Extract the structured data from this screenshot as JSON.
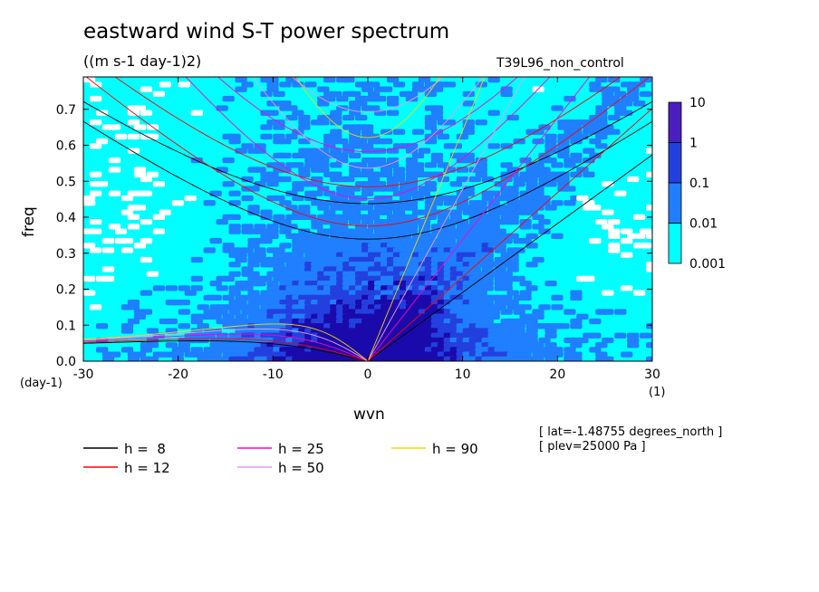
{
  "header": {
    "title": "eastward wind S-T power spectrum",
    "units": "((m s-1 day-1)2)",
    "run": "T39L96_non_control"
  },
  "axes": {
    "xlabel": "wvn",
    "ylabel": "freq",
    "x_unit": "(1)",
    "y_unit": "(day-1)"
  },
  "meta": {
    "lat": "[ lat=-1.48755 degrees_north ]",
    "plev": "[ plev=25000 Pa ]"
  },
  "colors": {
    "c1": "#00ffff",
    "c2": "#1f7fff",
    "c3": "#2340df",
    "c4": "#1b0aab",
    "c5": "#4a1fbf"
  },
  "chart_data": {
    "type": "heatmap",
    "title": "eastward wind S-T power spectrum",
    "xlabel": "wvn",
    "ylabel": "freq",
    "xlim": [
      -30,
      30
    ],
    "ylim": [
      0,
      0.79
    ],
    "x_ticks": [
      "-30",
      "-20",
      "-10",
      "0",
      "10",
      "20",
      "30"
    ],
    "y_ticks": [
      "0.0",
      "0.1",
      "0.2",
      "0.3",
      "0.4",
      "0.5",
      "0.6",
      "0.7"
    ],
    "colorbar": {
      "levels": [
        "10",
        "1",
        "0.1",
        "0.01",
        "0.001"
      ],
      "colors": [
        "#4a1fbf",
        "#1b0aab",
        "#2340df",
        "#1f7fff",
        "#00ffff"
      ]
    },
    "dispersion_curves": [
      {
        "name": "h =  8",
        "color": "#000000",
        "h": 8
      },
      {
        "name": "h = 12",
        "color": "#ff0000",
        "h": 12
      },
      {
        "name": "h = 25",
        "color": "#ff00c8",
        "h": 25
      },
      {
        "name": "h = 50",
        "color": "#e89ae8",
        "h": 50
      },
      {
        "name": "h = 90",
        "color": "#f0d800",
        "h": 90
      }
    ]
  }
}
